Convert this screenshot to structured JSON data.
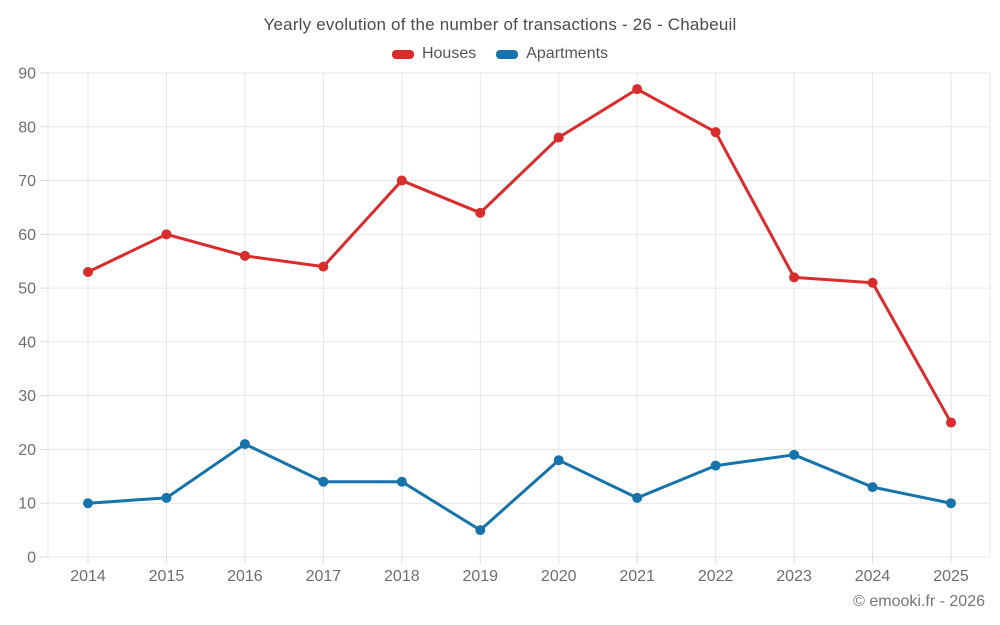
{
  "header": {
    "title": "Yearly evolution of the number of transactions - 26 - Chabeuil"
  },
  "footer": {
    "credit": "© emooki.fr - 2026"
  },
  "chart_data": {
    "type": "line",
    "title": "Yearly evolution of the number of transactions - 26 - Chabeuil",
    "categories": [
      "2014",
      "2015",
      "2016",
      "2017",
      "2018",
      "2019",
      "2020",
      "2021",
      "2022",
      "2023",
      "2024",
      "2025"
    ],
    "series": [
      {
        "name": "Houses",
        "color": "#d92c2c",
        "values": [
          53,
          60,
          56,
          54,
          70,
          64,
          78,
          87,
          79,
          52,
          51,
          25
        ]
      },
      {
        "name": "Apartments",
        "color": "#1673ab",
        "values": [
          10,
          11,
          21,
          14,
          14,
          5,
          18,
          11,
          17,
          19,
          13,
          10
        ]
      }
    ],
    "xlabel": "",
    "ylabel": "",
    "ylim": [
      0,
      90
    ],
    "ytick_step": 10,
    "grid": true,
    "legend_position": "top",
    "marker": "circle",
    "grid_color": "#e6e6e6",
    "tick_color": "#d8d8d8",
    "axis_label_color": "#6e6e6e"
  }
}
